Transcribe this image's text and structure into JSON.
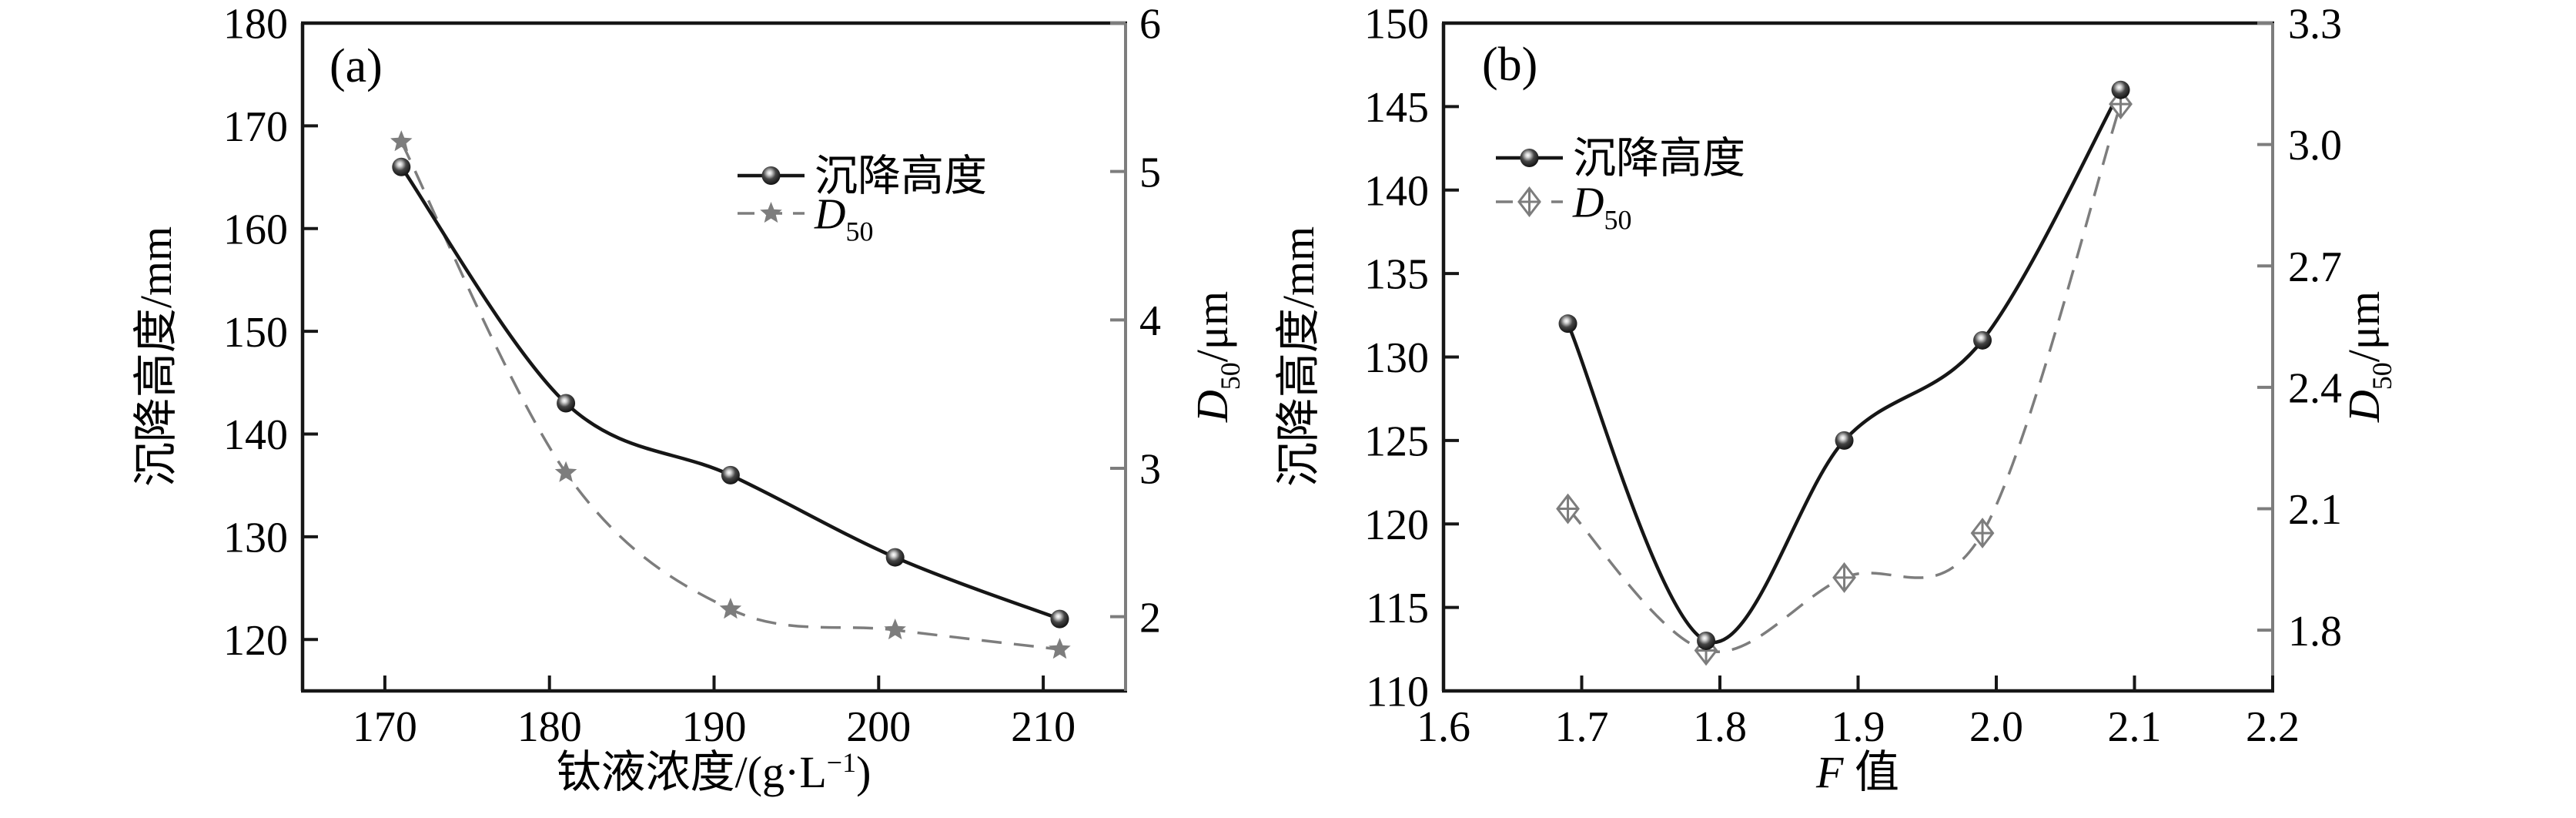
{
  "figure": {
    "background": "#ffffff",
    "description": "Dual-panel scientific line chart: settling height and D50 median particle size",
    "accent_black": "#161616",
    "accent_gray": "#7d7d7d"
  },
  "chart_data": [
    {
      "panel": "a",
      "type": "line",
      "tag": "(a)",
      "xlabel": "钛液浓度/(g·L⁻¹)",
      "ylabel_left": "沉降高度/mm",
      "ylabel_right": "D50/μm",
      "xlim": [
        165,
        215
      ],
      "xticks": [
        170,
        180,
        190,
        200,
        210
      ],
      "xtick_labels": [
        "170",
        "180",
        "190",
        "200",
        "210"
      ],
      "ylim_left": [
        115,
        180
      ],
      "yticks_left": [
        120,
        130,
        140,
        150,
        160,
        170,
        180
      ],
      "ytick_left_labels": [
        "120",
        "130",
        "140",
        "150",
        "160",
        "170",
        "180"
      ],
      "ylim_right": [
        1.5,
        6
      ],
      "yticks_right": [
        2,
        3,
        4,
        5,
        6
      ],
      "ytick_right_labels": [
        "2",
        "3",
        "4",
        "5",
        "6"
      ],
      "grid": false,
      "legend_position": "upper-middle-inside",
      "series": [
        {
          "name": "沉降高度",
          "axis": "left",
          "line": "solid",
          "marker": "ball",
          "color": "#161616",
          "x": [
            171,
            181,
            191,
            201,
            211
          ],
          "y": [
            166,
            143,
            136,
            128,
            122
          ]
        },
        {
          "name": "D50",
          "axis": "right",
          "line": "dashed",
          "marker": "star",
          "color": "#7d7d7d",
          "x": [
            171,
            181,
            191,
            201,
            211
          ],
          "y": [
            5.2,
            2.97,
            2.05,
            1.91,
            1.78
          ]
        }
      ],
      "label_rich": {
        "xlabel": [
          {
            "t": "钛液浓度/(g·L"
          },
          {
            "t": "−1",
            "sup": true
          },
          {
            "t": ")"
          }
        ],
        "ylabel_left": [
          {
            "t": "沉降高度/mm"
          }
        ],
        "ylabel_right": [
          {
            "t": "D",
            "italic": true
          },
          {
            "t": "50",
            "sub": true
          },
          {
            "t": "/μm"
          }
        ],
        "legend": [
          [
            {
              "t": "沉降高度"
            }
          ],
          [
            {
              "t": "D",
              "italic": true
            },
            {
              "t": "50",
              "sub": true
            }
          ]
        ]
      }
    },
    {
      "panel": "b",
      "type": "line",
      "tag": "(b)",
      "xlabel": "F 值",
      "ylabel_left": "沉降高度/mm",
      "ylabel_right": "D50/μm",
      "xlim": [
        1.6,
        2.2
      ],
      "xticks": [
        1.6,
        1.7,
        1.8,
        1.9,
        2.0,
        2.1,
        2.2
      ],
      "xtick_labels": [
        "1.6",
        "1.7",
        "1.8",
        "1.9",
        "2.0",
        "2.1",
        "2.2"
      ],
      "ylim_left": [
        110,
        150
      ],
      "yticks_left": [
        110,
        115,
        120,
        125,
        130,
        135,
        140,
        145,
        150
      ],
      "ytick_left_labels": [
        "110",
        "115",
        "120",
        "125",
        "130",
        "135",
        "140",
        "145",
        "150"
      ],
      "ylim_right": [
        1.65,
        3.3
      ],
      "yticks_right": [
        1.8,
        2.1,
        2.4,
        2.7,
        3.0,
        3.3
      ],
      "ytick_right_labels": [
        "1.8",
        "2.1",
        "2.4",
        "2.7",
        "3.0",
        "3.3"
      ],
      "grid": false,
      "legend_position": "upper-left-inside",
      "series": [
        {
          "name": "沉降高度",
          "axis": "left",
          "line": "solid",
          "marker": "ball",
          "color": "#161616",
          "x": [
            1.69,
            1.79,
            1.89,
            1.99,
            2.09
          ],
          "y": [
            132,
            113,
            125,
            131,
            146
          ]
        },
        {
          "name": "D50",
          "axis": "right",
          "line": "dashed",
          "marker": "diamond-cross",
          "color": "#7d7d7d",
          "x": [
            1.69,
            1.79,
            1.89,
            1.99,
            2.09
          ],
          "y": [
            2.1,
            1.75,
            1.93,
            2.04,
            3.1
          ]
        }
      ],
      "label_rich": {
        "xlabel": [
          {
            "t": "F",
            "italic": true
          },
          {
            "t": " 值"
          }
        ],
        "ylabel_left": [
          {
            "t": "沉降高度/mm"
          }
        ],
        "ylabel_right": [
          {
            "t": "D",
            "italic": true
          },
          {
            "t": "50",
            "sub": true
          },
          {
            "t": "/μm"
          }
        ],
        "legend": [
          [
            {
              "t": "沉降高度"
            }
          ],
          [
            {
              "t": "D",
              "italic": true
            },
            {
              "t": "50",
              "sub": true
            }
          ]
        ]
      }
    }
  ]
}
